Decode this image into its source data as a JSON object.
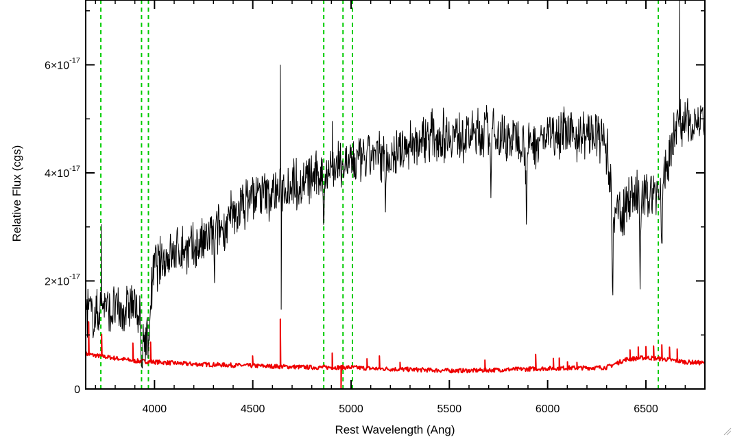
{
  "chart_data": {
    "type": "line",
    "title": "",
    "xlabel": "Rest Wavelength (Ang)",
    "ylabel": "Relative Flux (cgs)",
    "xlim": [
      3650,
      6800
    ],
    "ylim": [
      0,
      7.2e-17
    ],
    "x_ticks": [
      {
        "value": 4000,
        "label": "4000"
      },
      {
        "value": 4500,
        "label": "4500"
      },
      {
        "value": 5000,
        "label": "5000"
      },
      {
        "value": 5500,
        "label": "5500"
      },
      {
        "value": 6000,
        "label": "6000"
      },
      {
        "value": 6500,
        "label": "6500"
      }
    ],
    "y_ticks": [
      {
        "value": 0,
        "mantissa": "0",
        "exponent": ""
      },
      {
        "value": 2e-17,
        "mantissa": "2×10",
        "exponent": "-17"
      },
      {
        "value": 4e-17,
        "mantissa": "4×10",
        "exponent": "-17"
      },
      {
        "value": 6e-17,
        "mantissa": "6×10",
        "exponent": "-17"
      }
    ],
    "grid": false,
    "reference_lines": {
      "color": "#00cc00",
      "style": "dashed",
      "x": [
        3727,
        3934,
        3969,
        4861,
        4959,
        5007,
        6563
      ]
    },
    "series": [
      {
        "color": "#000000",
        "noise": 4.5e-18,
        "x": [
          3650,
          3680,
          3700,
          3720,
          3740,
          3760,
          3780,
          3800,
          3830,
          3850,
          3880,
          3900,
          3920,
          3940,
          3960,
          3980,
          4000,
          4050,
          4100,
          4150,
          4200,
          4250,
          4300,
          4350,
          4400,
          4450,
          4500,
          4550,
          4600,
          4650,
          4700,
          4750,
          4800,
          4850,
          4900,
          4950,
          5000,
          5050,
          5100,
          5150,
          5200,
          5250,
          5300,
          5350,
          5400,
          5450,
          5500,
          5550,
          5600,
          5650,
          5700,
          5750,
          5800,
          5850,
          5900,
          5950,
          6000,
          6050,
          6100,
          6150,
          6200,
          6250,
          6280,
          6300,
          6320,
          6340,
          6360,
          6380,
          6400,
          6420,
          6450,
          6480,
          6500,
          6520,
          6550,
          6580,
          6600,
          6620,
          6650,
          6680,
          6700,
          6750,
          6800
        ],
        "y": [
          1.5e-17,
          1.4e-17,
          1.3e-17,
          1.5e-17,
          1.6e-17,
          1.5e-17,
          1.4e-17,
          1.5e-17,
          1.4e-17,
          1.5e-17,
          1.6e-17,
          1.5e-17,
          1.4e-17,
          9e-18,
          1e-17,
          1.6e-17,
          2.3e-17,
          2.4e-17,
          2.5e-17,
          2.6e-17,
          2.6e-17,
          2.7e-17,
          2.9e-17,
          3e-17,
          3.2e-17,
          3.4e-17,
          3.6e-17,
          3.6e-17,
          3.6e-17,
          3.7e-17,
          3.8e-17,
          3.8e-17,
          3.9e-17,
          4e-17,
          4.1e-17,
          4.1e-17,
          4.2e-17,
          4.2e-17,
          4.3e-17,
          4.3e-17,
          4.3e-17,
          4.4e-17,
          4.5e-17,
          4.6e-17,
          4.7e-17,
          4.7e-17,
          4.7e-17,
          4.7e-17,
          4.7e-17,
          4.7e-17,
          4.8e-17,
          4.7e-17,
          4.6e-17,
          4.7e-17,
          4.5e-17,
          4.6e-17,
          4.7e-17,
          4.8e-17,
          4.7e-17,
          4.7e-17,
          4.7e-17,
          4.7e-17,
          4.6e-17,
          4.4e-17,
          3.8e-17,
          3e-17,
          3.4e-17,
          3.2e-17,
          3.4e-17,
          3.6e-17,
          3.6e-17,
          3.5e-17,
          3.5e-17,
          3.7e-17,
          3.6e-17,
          3.8e-17,
          4e-17,
          4.3e-17,
          4.9e-17,
          5e-17,
          4.9e-17,
          5e-17,
          4.9e-17
        ],
        "absorption": [
          {
            "x": 3935,
            "depth": 1.1e-17
          },
          {
            "x": 3970,
            "depth": 8e-18
          },
          {
            "x": 4305,
            "depth": 8e-18
          },
          {
            "x": 4862,
            "depth": 1e-17
          },
          {
            "x": 5175,
            "depth": 8e-18
          },
          {
            "x": 5710,
            "depth": 1.2e-17
          },
          {
            "x": 5892,
            "depth": 1.3e-17
          },
          {
            "x": 6330,
            "depth": 1.8e-17
          },
          {
            "x": 6470,
            "depth": 1.6e-17
          },
          {
            "x": 6580,
            "depth": 1.6e-17
          }
        ],
        "spikes": [
          {
            "x": 3730,
            "height": 1.5e-17
          },
          {
            "x": 4640,
            "height": 1.9e-17
          },
          {
            "x": 4645,
            "height": -1.8e-17
          },
          {
            "x": 4905,
            "height": 8e-18
          },
          {
            "x": 6670,
            "height": 2e-17
          }
        ]
      },
      {
        "color": "#ee0000",
        "noise": 4e-19,
        "x": [
          3650,
          3700,
          3800,
          3900,
          4000,
          4100,
          4200,
          4300,
          4400,
          4500,
          4600,
          4700,
          4800,
          4900,
          5000,
          5100,
          5200,
          5300,
          5400,
          5500,
          5600,
          5700,
          5800,
          5900,
          6000,
          6100,
          6200,
          6300,
          6400,
          6500,
          6600,
          6700,
          6800
        ],
        "y": [
          6.5e-18,
          6.2e-18,
          5.7e-18,
          5.2e-18,
          5e-18,
          4.8e-18,
          4.6e-18,
          4.5e-18,
          4.4e-18,
          4.3e-18,
          4.2e-18,
          4.1e-18,
          4e-18,
          4e-18,
          4e-18,
          3.8e-18,
          3.7e-18,
          3.6e-18,
          3.5e-18,
          3.4e-18,
          3.4e-18,
          3.5e-18,
          3.6e-18,
          3.7e-18,
          3.8e-18,
          3.9e-18,
          3.9e-18,
          4e-18,
          5.5e-18,
          5.8e-18,
          5.5e-18,
          5e-18,
          4.8e-18
        ],
        "spikes": [
          {
            "x": 3665,
            "height": 6e-18
          },
          {
            "x": 3730,
            "height": 4e-18
          },
          {
            "x": 3890,
            "height": 3e-18
          },
          {
            "x": 3980,
            "height": 3.5e-18
          },
          {
            "x": 4500,
            "height": 1.5e-18
          },
          {
            "x": 4640,
            "height": 8.5e-18
          },
          {
            "x": 4905,
            "height": 3e-18
          },
          {
            "x": 4950,
            "height": -5e-18
          },
          {
            "x": 5080,
            "height": 1.5e-18
          },
          {
            "x": 5145,
            "height": 2e-18
          },
          {
            "x": 5250,
            "height": 1.2e-18
          },
          {
            "x": 5680,
            "height": 2e-18
          },
          {
            "x": 5940,
            "height": 2.5e-18
          },
          {
            "x": 6030,
            "height": 2e-18
          },
          {
            "x": 6060,
            "height": 1.5e-18
          },
          {
            "x": 6100,
            "height": 1.5e-18
          },
          {
            "x": 6150,
            "height": 1.2e-18
          },
          {
            "x": 6420,
            "height": 2e-18
          },
          {
            "x": 6460,
            "height": 2e-18
          },
          {
            "x": 6500,
            "height": 2e-18
          },
          {
            "x": 6540,
            "height": 2e-18
          },
          {
            "x": 6580,
            "height": 2.5e-18
          },
          {
            "x": 6620,
            "height": 2e-18
          },
          {
            "x": 6660,
            "height": 2e-18
          }
        ]
      }
    ]
  }
}
